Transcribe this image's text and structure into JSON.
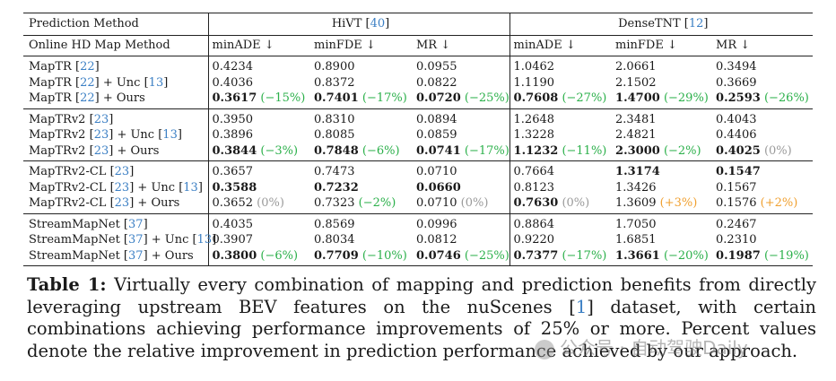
{
  "table": {
    "header1": {
      "col0": "Prediction Method",
      "group1": {
        "name": "HiVT",
        "cite": "40"
      },
      "group2": {
        "name": "DenseTNT",
        "cite": "12"
      }
    },
    "header2": [
      "Online HD Map Method",
      "minADE ↓",
      "minFDE ↓",
      "MR ↓",
      "minADE ↓",
      "minFDE ↓",
      "MR ↓"
    ],
    "groups": [
      {
        "rows": [
          {
            "name": "MapTR",
            "cite": "22",
            "suffix": "",
            "suffix_cite": "",
            "suffix2": "",
            "cells": [
              {
                "v": "0.4234"
              },
              {
                "v": "0.8900"
              },
              {
                "v": "0.0955"
              },
              {
                "v": "1.0462"
              },
              {
                "v": "2.0661"
              },
              {
                "v": "0.3494"
              }
            ]
          },
          {
            "name": "MapTR",
            "cite": "22",
            "suffix": " + Unc ",
            "suffix_cite": "13",
            "suffix2": "",
            "cells": [
              {
                "v": "0.4036"
              },
              {
                "v": "0.8372"
              },
              {
                "v": "0.0822"
              },
              {
                "v": "1.1190"
              },
              {
                "v": "2.1502"
              },
              {
                "v": "0.3669"
              }
            ]
          },
          {
            "name": "MapTR",
            "cite": "22",
            "suffix": " + Ours",
            "suffix_cite": "",
            "suffix2": "",
            "cells": [
              {
                "v": "0.3617",
                "b": true,
                "p": "(−15%)",
                "c": "good"
              },
              {
                "v": "0.7401",
                "b": true,
                "p": "(−17%)",
                "c": "good"
              },
              {
                "v": "0.0720",
                "b": true,
                "p": "(−25%)",
                "c": "good"
              },
              {
                "v": "0.7608",
                "b": true,
                "p": "(−27%)",
                "c": "good"
              },
              {
                "v": "1.4700",
                "b": true,
                "p": "(−29%)",
                "c": "good"
              },
              {
                "v": "0.2593",
                "b": true,
                "p": "(−26%)",
                "c": "good"
              }
            ]
          }
        ]
      },
      {
        "rows": [
          {
            "name": "MapTRv2",
            "cite": "23",
            "suffix": "",
            "suffix_cite": "",
            "suffix2": "",
            "cells": [
              {
                "v": "0.3950"
              },
              {
                "v": "0.8310"
              },
              {
                "v": "0.0894"
              },
              {
                "v": "1.2648"
              },
              {
                "v": "2.3481"
              },
              {
                "v": "0.4043"
              }
            ]
          },
          {
            "name": "MapTRv2",
            "cite": "23",
            "suffix": " + Unc ",
            "suffix_cite": "13",
            "suffix2": "",
            "cells": [
              {
                "v": "0.3896"
              },
              {
                "v": "0.8085"
              },
              {
                "v": "0.0859"
              },
              {
                "v": "1.3228"
              },
              {
                "v": "2.4821"
              },
              {
                "v": "0.4406"
              }
            ]
          },
          {
            "name": "MapTRv2",
            "cite": "23",
            "suffix": " + Ours",
            "suffix_cite": "",
            "suffix2": "",
            "cells": [
              {
                "v": "0.3844",
                "b": true,
                "p": "(−3%)",
                "c": "good"
              },
              {
                "v": "0.7848",
                "b": true,
                "p": "(−6%)",
                "c": "good"
              },
              {
                "v": "0.0741",
                "b": true,
                "p": "(−17%)",
                "c": "good"
              },
              {
                "v": "1.1232",
                "b": true,
                "p": "(−11%)",
                "c": "good"
              },
              {
                "v": "2.3000",
                "b": true,
                "p": "(−2%)",
                "c": "good"
              },
              {
                "v": "0.4025",
                "b": true,
                "p": "(0%)",
                "c": "zero"
              }
            ]
          }
        ]
      },
      {
        "rows": [
          {
            "name": "MapTRv2-CL",
            "cite": "23",
            "suffix": "",
            "suffix_cite": "",
            "suffix2": "",
            "cells": [
              {
                "v": "0.3657"
              },
              {
                "v": "0.7473"
              },
              {
                "v": "0.0710"
              },
              {
                "v": "0.7664"
              },
              {
                "v": "1.3174",
                "b": true
              },
              {
                "v": "0.1547",
                "b": true
              }
            ]
          },
          {
            "name": "MapTRv2-CL",
            "cite": "23",
            "suffix": " + Unc ",
            "suffix_cite": "13",
            "suffix2": "",
            "cells": [
              {
                "v": "0.3588",
                "b": true
              },
              {
                "v": "0.7232",
                "b": true
              },
              {
                "v": "0.0660",
                "b": true
              },
              {
                "v": "0.8123"
              },
              {
                "v": "1.3426"
              },
              {
                "v": "0.1567"
              }
            ]
          },
          {
            "name": "MapTRv2-CL",
            "cite": "23",
            "suffix": " + Ours",
            "suffix_cite": "",
            "suffix2": "",
            "cells": [
              {
                "v": "0.3652",
                "p": "(0%)",
                "c": "zero"
              },
              {
                "v": "0.7323",
                "p": "(−2%)",
                "c": "good"
              },
              {
                "v": "0.0710",
                "p": "(0%)",
                "c": "zero"
              },
              {
                "v": "0.7630",
                "b": true,
                "p": "(0%)",
                "c": "zero"
              },
              {
                "v": "1.3609",
                "p": "(+3%)",
                "c": "bad"
              },
              {
                "v": "0.1576",
                "p": "(+2%)",
                "c": "bad"
              }
            ]
          }
        ]
      },
      {
        "rows": [
          {
            "name": "StreamMapNet",
            "cite": "37",
            "suffix": "",
            "suffix_cite": "",
            "suffix2": "",
            "cells": [
              {
                "v": "0.4035"
              },
              {
                "v": "0.8569"
              },
              {
                "v": "0.0996"
              },
              {
                "v": "0.8864"
              },
              {
                "v": "1.7050"
              },
              {
                "v": "0.2467"
              }
            ]
          },
          {
            "name": "StreamMapNet",
            "cite": "37",
            "suffix": " + Unc ",
            "suffix_cite": "13",
            "suffix2": "",
            "cells": [
              {
                "v": "0.3907"
              },
              {
                "v": "0.8034"
              },
              {
                "v": "0.0812"
              },
              {
                "v": "0.9220"
              },
              {
                "v": "1.6851"
              },
              {
                "v": "0.2310"
              }
            ]
          },
          {
            "name": "StreamMapNet",
            "cite": "37",
            "suffix": " + Ours",
            "suffix_cite": "",
            "suffix2": "",
            "cells": [
              {
                "v": "0.3800",
                "b": true,
                "p": "(−6%)",
                "c": "good"
              },
              {
                "v": "0.7709",
                "b": true,
                "p": "(−10%)",
                "c": "good"
              },
              {
                "v": "0.0746",
                "b": true,
                "p": "(−25%)",
                "c": "good"
              },
              {
                "v": "0.7377",
                "b": true,
                "p": "(−17%)",
                "c": "good"
              },
              {
                "v": "1.3661",
                "b": true,
                "p": "(−20%)",
                "c": "good"
              },
              {
                "v": "0.1987",
                "b": true,
                "p": "(−19%)",
                "c": "good"
              }
            ]
          }
        ]
      }
    ]
  },
  "caption": {
    "label": "Table 1:",
    "text_before": " Virtually every combination of mapping and prediction benefits from directly leveraging upstream BEV features on the nuScenes [",
    "cite": "1",
    "text_after": "] dataset, with certain combinations achieving performance improvements of 25% or more. Percent values denote the relative improvement in prediction performance achieved by our approach."
  },
  "watermark": "公众号 · 自动驾驶Daily",
  "colors": {
    "good": "#2bb04a",
    "zero": "#9a9a9a",
    "bad": "#f0a030",
    "cite": "#3b7fc4"
  }
}
